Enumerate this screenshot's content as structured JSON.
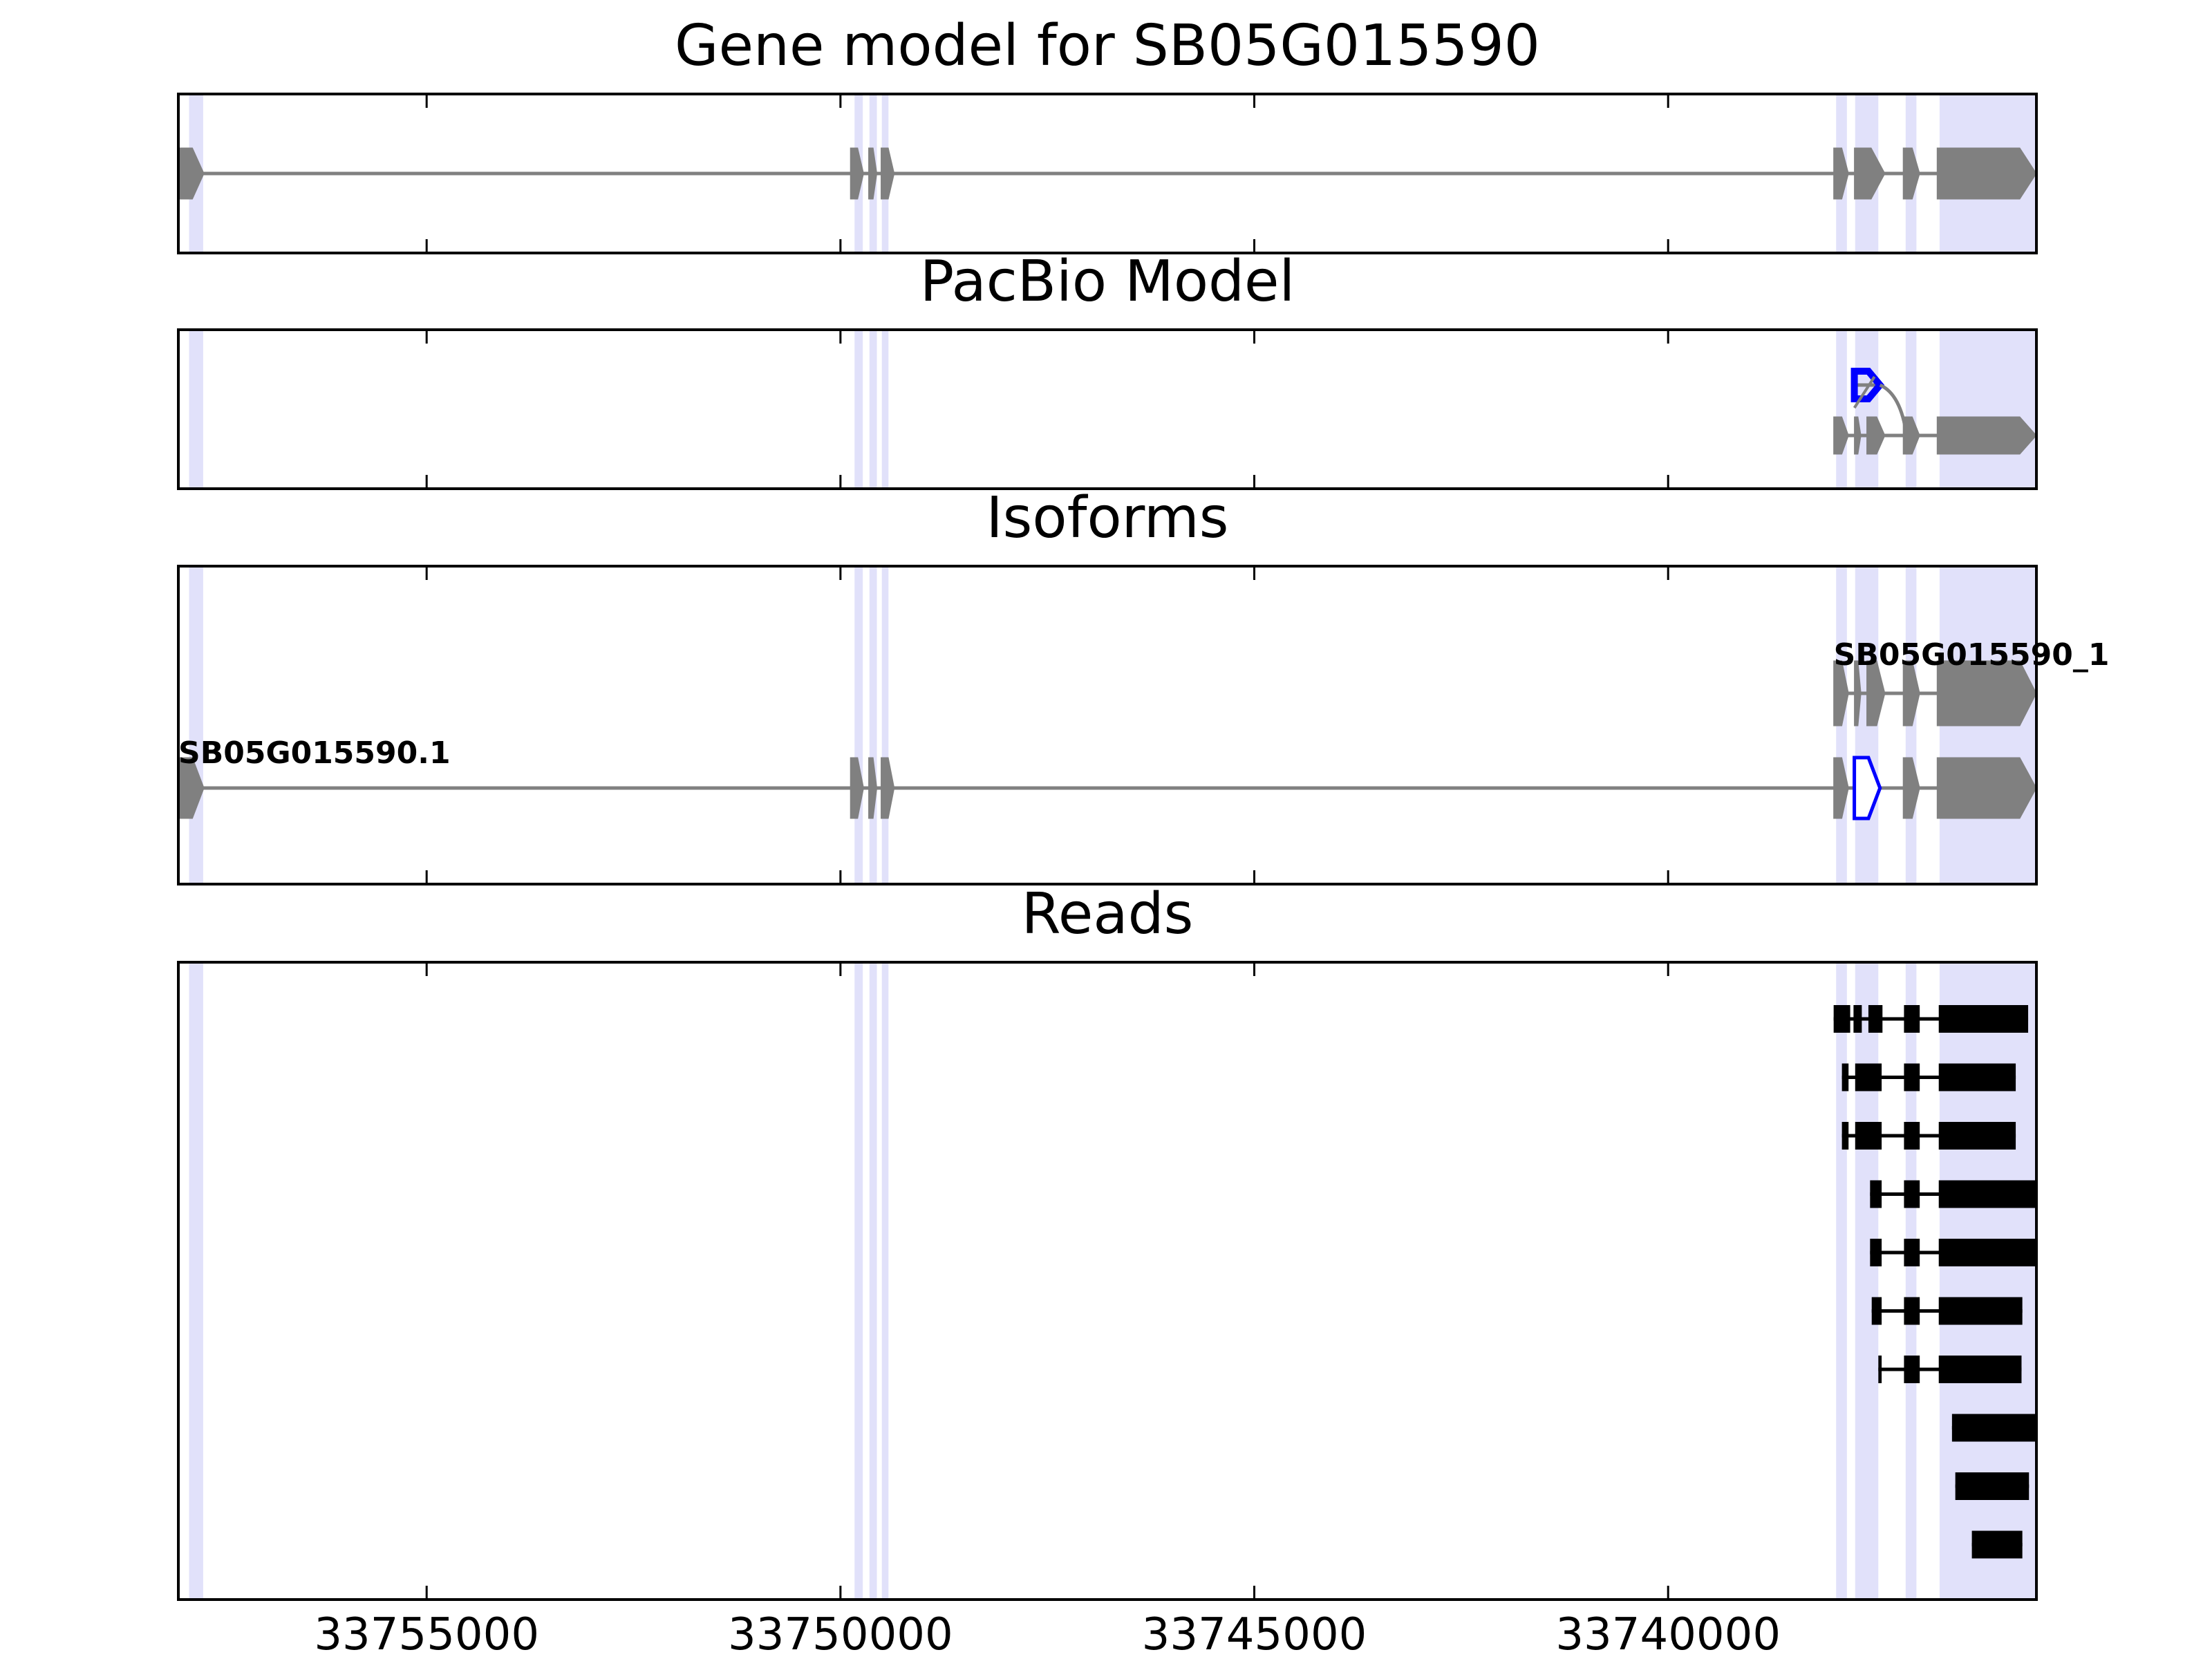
{
  "figure": {
    "colors": {
      "highlight": "#e1e1fa",
      "gene": "#808080",
      "pacbio": "#0000ff",
      "reads": "#000000",
      "axis": "#000000"
    }
  },
  "chart_data": [
    {
      "type": "gene-track",
      "title": "Gene model for SB05G015590",
      "xlim": [
        33758000,
        33735550
      ],
      "x_inverted": true,
      "xticks": [
        33755000,
        33750000,
        33745000,
        33740000
      ],
      "xtick_labels": [],
      "highlight_regions": [
        [
          33757870,
          33757700
        ],
        [
          33749830,
          33749730
        ],
        [
          33749650,
          33749560
        ],
        [
          33749500,
          33749420
        ],
        [
          33737970,
          33737840
        ],
        [
          33737740,
          33737460
        ],
        [
          33737130,
          33737000
        ],
        [
          33736720,
          33735550
        ]
      ],
      "models": [
        {
          "name": "",
          "color": "#808080",
          "strand": "-",
          "exons": [
            [
              33758000,
              33757690
            ],
            [
              33749880,
              33749720
            ],
            [
              33749660,
              33749560
            ],
            [
              33749510,
              33749350
            ],
            [
              33738000,
              33737820
            ],
            [
              33737750,
              33737380
            ],
            [
              33737160,
              33736960
            ],
            [
              33736750,
              33735550
            ]
          ]
        }
      ]
    },
    {
      "type": "gene-track",
      "title": "PacBio Model",
      "xlim": [
        33758000,
        33735550
      ],
      "x_inverted": true,
      "xticks": [
        33755000,
        33750000,
        33745000,
        33740000
      ],
      "xtick_labels": [],
      "highlight_regions": [
        [
          33757870,
          33757700
        ],
        [
          33749830,
          33749730
        ],
        [
          33749650,
          33749560
        ],
        [
          33749500,
          33749420
        ],
        [
          33737970,
          33737840
        ],
        [
          33737740,
          33737460
        ],
        [
          33737130,
          33737000
        ],
        [
          33736720,
          33735550
        ]
      ],
      "models": [
        {
          "name": "",
          "color": "#0000ff",
          "strand": "-",
          "outline": true,
          "row": 1,
          "exons": [
            [
              33737750,
              33737440
            ]
          ]
        },
        {
          "name": "",
          "color": "#808080",
          "strand": "-",
          "row": 0,
          "exons": [
            [
              33738000,
              33737820
            ],
            [
              33737750,
              33737670
            ],
            [
              33737600,
              33737380
            ],
            [
              33737160,
              33736960
            ],
            [
              33736750,
              33735550
            ]
          ]
        }
      ]
    },
    {
      "type": "gene-track",
      "title": "Isoforms",
      "xlim": [
        33758000,
        33735550
      ],
      "x_inverted": true,
      "xticks": [
        33755000,
        33750000,
        33745000,
        33740000
      ],
      "xtick_labels": [],
      "highlight_regions": [
        [
          33757870,
          33757700
        ],
        [
          33749830,
          33749730
        ],
        [
          33749650,
          33749560
        ],
        [
          33749500,
          33749420
        ],
        [
          33737970,
          33737840
        ],
        [
          33737740,
          33737460
        ],
        [
          33737130,
          33737000
        ],
        [
          33736720,
          33735550
        ]
      ],
      "models": [
        {
          "name": "SB05G015590_1",
          "color": "#808080",
          "strand": "-",
          "row": 1,
          "exons": [
            [
              33738000,
              33737820
            ],
            [
              33737750,
              33737670
            ],
            [
              33737600,
              33737380
            ],
            [
              33737160,
              33736960
            ],
            [
              33736750,
              33735550
            ]
          ]
        },
        {
          "name": "SB05G015590.1",
          "color": "#808080",
          "strand": "-",
          "row": 0,
          "exons": [
            [
              33758000,
              33757690
            ],
            [
              33749880,
              33749720
            ],
            [
              33749660,
              33749560
            ],
            [
              33749510,
              33749350
            ],
            [
              33738000,
              33737820
            ],
            [
              33737160,
              33736960
            ],
            [
              33736750,
              33735550
            ]
          ],
          "highlight_exon": {
            "color": "#0000ff",
            "exon": [
              33737750,
              33737440
            ]
          }
        }
      ]
    },
    {
      "type": "read-track",
      "title": "Reads",
      "xlim": [
        33758000,
        33735550
      ],
      "x_inverted": true,
      "xticks": [
        33755000,
        33750000,
        33745000,
        33740000
      ],
      "xtick_labels": [
        "33755000",
        "33750000",
        "33745000",
        "33740000"
      ],
      "highlight_regions": [
        [
          33757870,
          33757700
        ],
        [
          33749830,
          33749730
        ],
        [
          33749650,
          33749560
        ],
        [
          33749500,
          33749420
        ],
        [
          33737970,
          33737840
        ],
        [
          33737740,
          33737460
        ],
        [
          33737130,
          33737000
        ],
        [
          33736720,
          33735550
        ]
      ],
      "reads": [
        [
          [
            33738000,
            33737800
          ],
          [
            33737760,
            33737660
          ],
          [
            33737580,
            33737410
          ],
          [
            33737150,
            33736960
          ],
          [
            33736730,
            33735650
          ]
        ],
        [
          [
            33737900,
            33737820
          ],
          [
            33737740,
            33737420
          ],
          [
            33737150,
            33736960
          ],
          [
            33736730,
            33735800
          ]
        ],
        [
          [
            33737900,
            33737820
          ],
          [
            33737740,
            33737420
          ],
          [
            33737150,
            33736960
          ],
          [
            33736730,
            33735800
          ]
        ],
        [
          [
            33737560,
            33737420
          ],
          [
            33737150,
            33736960
          ],
          [
            33736730,
            33735550
          ]
        ],
        [
          [
            33737560,
            33737420
          ],
          [
            33737150,
            33736960
          ],
          [
            33736730,
            33735550
          ]
        ],
        [
          [
            33737540,
            33737420
          ],
          [
            33737150,
            33736960
          ],
          [
            33736730,
            33735720
          ]
        ],
        [
          [
            33737460,
            33737420
          ],
          [
            33737150,
            33736960
          ],
          [
            33736730,
            33735730
          ]
        ],
        [
          [
            33736570,
            33735550
          ]
        ],
        [
          [
            33736530,
            33735640
          ]
        ],
        [
          [
            33736330,
            33735720
          ]
        ]
      ]
    }
  ]
}
